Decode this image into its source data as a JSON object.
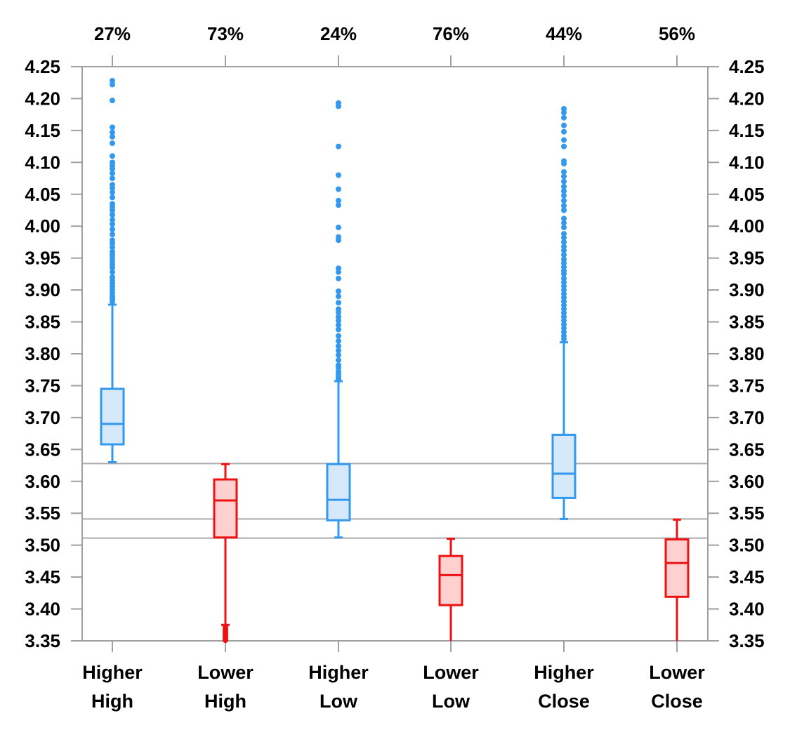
{
  "chart_data": {
    "type": "box",
    "y_axis": {
      "min": 3.35,
      "max": 4.25,
      "ticks": [
        "4.25",
        "4.20",
        "4.15",
        "4.10",
        "4.05",
        "4.00",
        "3.95",
        "3.90",
        "3.85",
        "3.80",
        "3.75",
        "3.70",
        "3.65",
        "3.60",
        "3.55",
        "3.50",
        "3.45",
        "3.40",
        "3.35"
      ],
      "tick_values": [
        4.25,
        4.2,
        4.15,
        4.1,
        4.05,
        4.0,
        3.95,
        3.9,
        3.85,
        3.8,
        3.75,
        3.7,
        3.65,
        3.6,
        3.55,
        3.5,
        3.45,
        3.4,
        3.35
      ],
      "mirrored_right": true
    },
    "reference_lines": [
      3.628,
      3.541,
      3.511
    ],
    "colors": {
      "higher_stroke": "#3399ee",
      "higher_fill": "#d6e9fb",
      "lower_stroke": "#ee1111",
      "lower_fill": "#ffd0d0",
      "reference_line": "#aaaaaa",
      "frame": "#a0a0a0"
    },
    "categories": [
      {
        "line1": "Higher",
        "line2": "High",
        "percent": "27%",
        "group": "higher",
        "whisker_low": 3.63,
        "q1": 3.658,
        "median": 3.69,
        "q3": 3.745,
        "whisker_high": 3.877,
        "outliers": [
          4.228,
          4.222,
          4.197,
          4.155,
          4.147,
          4.14,
          4.13,
          4.11,
          4.1,
          4.095,
          4.09,
          4.083,
          4.075,
          4.065,
          4.06,
          4.053,
          4.045,
          4.035,
          4.03,
          4.025,
          4.018,
          4.01,
          4.003,
          3.995,
          3.987,
          3.978,
          3.973,
          3.967,
          3.96,
          3.955,
          3.95,
          3.945,
          3.94,
          3.935,
          3.928,
          3.92,
          3.915,
          3.91,
          3.905,
          3.9,
          3.895,
          3.89,
          3.886,
          3.882
        ]
      },
      {
        "line1": "Lower",
        "line2": "High",
        "percent": "73%",
        "group": "lower",
        "whisker_low": 3.375,
        "q1": 3.512,
        "median": 3.57,
        "q3": 3.603,
        "whisker_high": 3.627,
        "outliers": [
          3.372,
          3.368,
          3.365,
          3.362,
          3.359,
          3.356,
          3.353,
          3.351
        ]
      },
      {
        "line1": "Higher",
        "line2": "Low",
        "percent": "24%",
        "group": "higher",
        "whisker_low": 3.512,
        "q1": 3.539,
        "median": 3.571,
        "q3": 3.627,
        "whisker_high": 3.757,
        "outliers": [
          4.193,
          4.188,
          4.125,
          4.08,
          4.058,
          4.04,
          4.033,
          3.998,
          3.983,
          3.978,
          3.934,
          3.928,
          3.918,
          3.898,
          3.89,
          3.88,
          3.87,
          3.865,
          3.858,
          3.852,
          3.845,
          3.838,
          3.828,
          3.82,
          3.812,
          3.805,
          3.798,
          3.79,
          3.782,
          3.778,
          3.772,
          3.768,
          3.764,
          3.76
        ]
      },
      {
        "line1": "Lower",
        "line2": "Low",
        "percent": "76%",
        "group": "lower",
        "whisker_low": 3.35,
        "q1": 3.406,
        "median": 3.453,
        "q3": 3.483,
        "whisker_high": 3.51,
        "outliers": []
      },
      {
        "line1": "Higher",
        "line2": "Close",
        "percent": "44%",
        "group": "higher",
        "whisker_low": 3.541,
        "q1": 3.574,
        "median": 3.612,
        "q3": 3.673,
        "whisker_high": 3.818,
        "outliers": [
          4.184,
          4.178,
          4.17,
          4.158,
          4.148,
          4.135,
          4.125,
          4.102,
          4.098,
          4.085,
          4.078,
          4.07,
          4.062,
          4.055,
          4.048,
          4.04,
          4.032,
          4.025,
          4.012,
          4.005,
          3.998,
          3.988,
          3.982,
          3.975,
          3.968,
          3.962,
          3.955,
          3.948,
          3.942,
          3.936,
          3.93,
          3.925,
          3.918,
          3.912,
          3.906,
          3.9,
          3.894,
          3.888,
          3.882,
          3.876,
          3.87,
          3.864,
          3.858,
          3.852,
          3.846,
          3.84,
          3.834,
          3.828,
          3.823
        ]
      },
      {
        "line1": "Lower",
        "line2": "Close",
        "percent": "56%",
        "group": "lower",
        "whisker_low": 3.35,
        "q1": 3.419,
        "median": 3.472,
        "q3": 3.509,
        "whisker_high": 3.54,
        "outliers": []
      }
    ]
  }
}
